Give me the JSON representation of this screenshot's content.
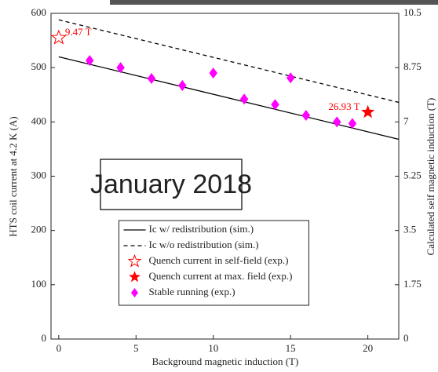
{
  "chart_data": {
    "type": "line",
    "xlabel": "Background magnetic induction (T)",
    "ylabel": "HTS coil current at 4.2 K (A)",
    "y2label": "Calculated self magnetic induction (T)",
    "overlay_text": "January 2018",
    "xlim": [
      -0.5,
      22
    ],
    "xticks": [
      0,
      5,
      10,
      15,
      20
    ],
    "ylim": [
      0,
      600
    ],
    "yticks": [
      0,
      100,
      200,
      300,
      400,
      500,
      600
    ],
    "y2lim": [
      0,
      10.5
    ],
    "y2ticks": [
      0,
      1.75,
      3.5,
      5.25,
      7,
      8.75,
      10.5
    ],
    "legend": "lower center",
    "series": [
      {
        "name": "Ic w/ redistribution (sim.)",
        "style": "solid",
        "color": "#000000",
        "x": [
          0,
          22
        ],
        "values": [
          520,
          368
        ]
      },
      {
        "name": "Ic w/o redistribution (sim.)",
        "style": "dashed",
        "color": "#000000",
        "x": [
          0,
          22
        ],
        "values": [
          588,
          436
        ]
      },
      {
        "name": "Quench current in self-field (exp.)",
        "style": "open-star",
        "color": "#ff0000",
        "x": [
          0
        ],
        "values": [
          555
        ],
        "label": "9.47 T"
      },
      {
        "name": "Quench current at max. field (exp.)",
        "style": "star",
        "color": "#ff0000",
        "x": [
          20
        ],
        "values": [
          418
        ],
        "label": "26.93 T"
      },
      {
        "name": "Stable running (exp.)",
        "style": "diamond",
        "color": "#ff00ff",
        "x": [
          2,
          4,
          6,
          8,
          10,
          12,
          14,
          15,
          16,
          18,
          19
        ],
        "values": [
          513,
          500,
          480,
          467,
          490,
          442,
          432,
          481,
          412,
          400,
          397
        ]
      }
    ]
  }
}
